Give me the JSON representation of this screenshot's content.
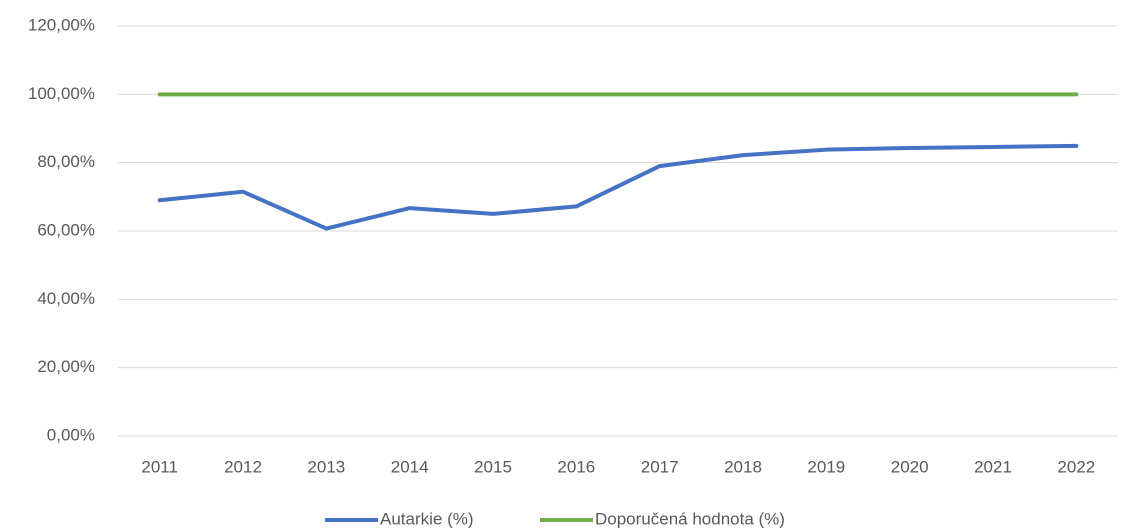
{
  "chart_data": {
    "type": "line",
    "categories": [
      "2011",
      "2012",
      "2013",
      "2014",
      "2015",
      "2016",
      "2017",
      "2018",
      "2019",
      "2020",
      "2021",
      "2022"
    ],
    "series": [
      {
        "name": "Autarkie (%)",
        "color": "#4472c4",
        "values": [
          69,
          71.5,
          60.7,
          66.7,
          65,
          67.2,
          79,
          82.2,
          83.8,
          84.3,
          84.6,
          84.9
        ]
      },
      {
        "name": "Doporučená hodnota (%)",
        "color": "#70ad47",
        "values": [
          100,
          100,
          100,
          100,
          100,
          100,
          100,
          100,
          100,
          100,
          100,
          100
        ]
      }
    ],
    "ylim": [
      0,
      120
    ],
    "yticks": [
      {
        "value": 0,
        "label": "0,00%"
      },
      {
        "value": 20,
        "label": "20,00%"
      },
      {
        "value": 40,
        "label": "40,00%"
      },
      {
        "value": 60,
        "label": "60,00%"
      },
      {
        "value": 80,
        "label": "80,00%"
      },
      {
        "value": 100,
        "label": "100,00%"
      },
      {
        "value": 120,
        "label": "120,00%"
      }
    ],
    "grid": true,
    "legend": "bottom"
  }
}
